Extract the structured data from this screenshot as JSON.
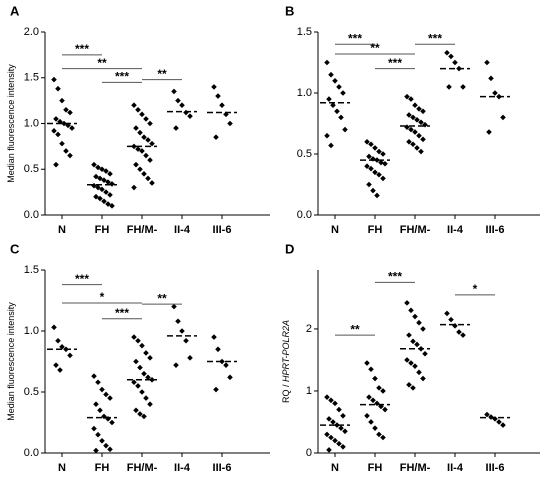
{
  "chart_data": [
    {
      "type": "dotplot",
      "title": "A",
      "ylabel": "Median fluorescence intensity",
      "categories": [
        "N",
        "FH",
        "FH/M-",
        "II-4",
        "III-6"
      ],
      "points": [
        [
          1.48,
          1.38,
          1.25,
          1.15,
          1.12,
          1.05,
          1.02,
          1.0,
          0.98,
          0.95,
          0.92,
          0.88,
          0.78,
          0.7,
          0.65,
          0.55
        ],
        [
          0.55,
          0.52,
          0.5,
          0.48,
          0.45,
          0.42,
          0.4,
          0.38,
          0.36,
          0.34,
          0.32,
          0.3,
          0.28,
          0.25,
          0.22,
          0.2,
          0.18,
          0.15,
          0.12,
          0.1
        ],
        [
          1.2,
          1.15,
          1.1,
          1.05,
          1.0,
          0.95,
          0.9,
          0.85,
          0.82,
          0.78,
          0.75,
          0.72,
          0.7,
          0.65,
          0.6,
          0.55,
          0.5,
          0.45,
          0.4,
          0.35,
          0.3
        ],
        [
          1.35,
          1.25,
          1.2,
          1.12,
          1.08,
          0.95
        ],
        [
          1.4,
          1.3,
          1.2,
          1.1,
          1.0,
          0.85
        ]
      ],
      "medians": [
        1.0,
        0.33,
        0.75,
        1.13,
        1.12
      ],
      "significance": [
        {
          "from": "N",
          "to": "FH",
          "y": 1.75,
          "label": "***"
        },
        {
          "from": "N",
          "to": "FH/M-",
          "y": 1.6,
          "label": "**"
        },
        {
          "from": "FH",
          "to": "FH/M-",
          "y": 1.45,
          "label": "***"
        },
        {
          "from": "FH/M-",
          "to": "II-4",
          "y": 1.48,
          "label": "**"
        }
      ],
      "ylim": [
        0,
        2.0
      ],
      "yticks": [
        {
          "value": 0,
          "label": "0.0"
        },
        {
          "value": 0.5,
          "label": "0.5"
        },
        {
          "value": 1,
          "label": "1.0"
        },
        {
          "value": 1.5,
          "label": "1.5"
        },
        {
          "value": 2,
          "label": "2.0"
        }
      ],
      "color": "#000000"
    },
    {
      "type": "dotplot",
      "title": "B",
      "categories": [
        "N",
        "FH",
        "FH/M-",
        "II-4",
        "III-6"
      ],
      "points": [
        [
          1.25,
          1.15,
          1.1,
          1.05,
          1.0,
          0.95,
          0.9,
          0.85,
          0.8,
          0.7,
          0.65,
          0.57
        ],
        [
          0.6,
          0.58,
          0.55,
          0.52,
          0.5,
          0.48,
          0.46,
          0.45,
          0.43,
          0.42,
          0.4,
          0.38,
          0.35,
          0.33,
          0.3,
          0.25,
          0.2,
          0.16
        ],
        [
          0.97,
          0.95,
          0.9,
          0.87,
          0.85,
          0.82,
          0.8,
          0.78,
          0.76,
          0.74,
          0.72,
          0.7,
          0.68,
          0.65,
          0.62,
          0.6,
          0.58,
          0.55,
          0.52
        ],
        [
          1.33,
          1.3,
          1.25,
          1.2,
          1.05,
          1.05
        ],
        [
          1.25,
          1.12,
          1.0,
          0.97,
          0.8,
          0.68
        ]
      ],
      "medians": [
        0.92,
        0.45,
        0.73,
        1.2,
        0.97
      ],
      "significance": [
        {
          "from": "N",
          "to": "FH",
          "y": 1.4,
          "label": "***"
        },
        {
          "from": "N",
          "to": "FH/M-",
          "y": 1.32,
          "label": "**"
        },
        {
          "from": "FH",
          "to": "FH/M-",
          "y": 1.2,
          "label": "***"
        },
        {
          "from": "FH/M-",
          "to": "II-4",
          "y": 1.4,
          "label": "***"
        }
      ],
      "ylim": [
        0,
        1.5
      ],
      "yticks": [
        {
          "value": 0,
          "label": "0.0"
        },
        {
          "value": 0.5,
          "label": "0.5"
        },
        {
          "value": 1,
          "label": "1.0"
        },
        {
          "value": 1.5,
          "label": "1.5"
        }
      ],
      "color": "#000000"
    },
    {
      "type": "dotplot",
      "title": "C",
      "ylabel": "Median fluorescence intensity",
      "categories": [
        "N",
        "FH",
        "FH/M-",
        "II-4",
        "III-6"
      ],
      "points": [
        [
          1.03,
          0.92,
          0.87,
          0.85,
          0.8,
          0.72,
          0.68
        ],
        [
          0.63,
          0.58,
          0.52,
          0.48,
          0.45,
          0.4,
          0.35,
          0.3,
          0.28,
          0.25,
          0.2,
          0.15,
          0.1,
          0.06,
          0.03,
          0.02
        ],
        [
          0.95,
          0.92,
          0.88,
          0.82,
          0.78,
          0.75,
          0.7,
          0.65,
          0.62,
          0.6,
          0.58,
          0.55,
          0.5,
          0.45,
          0.4,
          0.35,
          0.32,
          0.3
        ],
        [
          1.2,
          1.08,
          1.0,
          0.92,
          0.78,
          0.72
        ],
        [
          0.95,
          0.85,
          0.75,
          0.72,
          0.62,
          0.52
        ]
      ],
      "medians": [
        0.85,
        0.29,
        0.6,
        0.96,
        0.75
      ],
      "significance": [
        {
          "from": "N",
          "to": "FH",
          "y": 1.38,
          "label": "***"
        },
        {
          "from": "N",
          "to": "FH/M-",
          "y": 1.23,
          "label": "*"
        },
        {
          "from": "FH",
          "to": "FH/M-",
          "y": 1.1,
          "label": "***"
        },
        {
          "from": "FH/M-",
          "to": "II-4",
          "y": 1.22,
          "label": "**"
        }
      ],
      "ylim": [
        0,
        1.5
      ],
      "yticks": [
        {
          "value": 0,
          "label": "0.0"
        },
        {
          "value": 0.5,
          "label": "0.5"
        },
        {
          "value": 1,
          "label": "1.0"
        },
        {
          "value": 1.5,
          "label": "1.5"
        }
      ],
      "color": "#000000"
    },
    {
      "type": "dotplot",
      "title": "D",
      "ylabel": "RQ / ",
      "ylabel_italic": "HPRT-POLR2A",
      "categories": [
        "N",
        "FH",
        "FH/M-",
        "II-4",
        "III-6"
      ],
      "points": [
        [
          0.9,
          0.85,
          0.8,
          0.7,
          0.6,
          0.55,
          0.5,
          0.45,
          0.4,
          0.35,
          0.3,
          0.25,
          0.2,
          0.15,
          0.1,
          0.05
        ],
        [
          1.45,
          1.35,
          1.2,
          1.05,
          1.0,
          0.9,
          0.85,
          0.8,
          0.75,
          0.7,
          0.6,
          0.5,
          0.4,
          0.3,
          0.25
        ],
        [
          2.42,
          2.3,
          2.2,
          2.1,
          2.0,
          1.9,
          1.8,
          1.75,
          1.68,
          1.6,
          1.5,
          1.45,
          1.4,
          1.3,
          1.2,
          1.1,
          1.05
        ],
        [
          2.25,
          2.15,
          2.05,
          1.95,
          1.9
        ],
        [
          0.62,
          0.58,
          0.55,
          0.5,
          0.45
        ]
      ],
      "medians": [
        0.45,
        0.78,
        1.68,
        2.07,
        0.57
      ],
      "significance": [
        {
          "from": "N",
          "to": "FH",
          "y": 1.9,
          "label": "**"
        },
        {
          "from": "FH",
          "to": "FH/M-",
          "y": 2.75,
          "label": "***"
        },
        {
          "from": "II-4",
          "to": "III-6",
          "y": 2.55,
          "label": "*"
        }
      ],
      "ylim": [
        0,
        2.95
      ],
      "yticks": [
        0,
        1,
        2
      ],
      "color": "#000000"
    }
  ]
}
